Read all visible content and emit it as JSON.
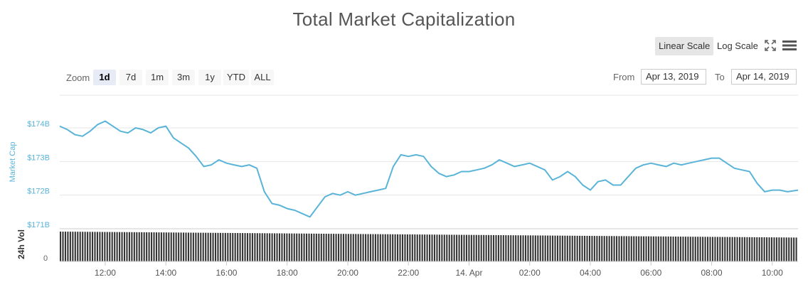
{
  "toolbar": {
    "scale_linear": "Linear Scale",
    "scale_log": "Log Scale",
    "fullscreen_icon": "fullscreen-icon",
    "menu_icon": "hamburger-menu-icon"
  },
  "range_selector": {
    "zoom_label": "Zoom",
    "buttons": [
      "1d",
      "7d",
      "1m",
      "3m",
      "1y",
      "YTD",
      "ALL"
    ],
    "active": "1d",
    "from_label": "From",
    "from_value": "Apr 13, 2019",
    "to_label": "To",
    "to_value": "Apr 14, 2019"
  },
  "colors": {
    "line": "#5ab4d8",
    "volume": "#333333",
    "grid": "#e6e6e6",
    "axis_text": "#666666",
    "ylabel": "#5ab4d8"
  },
  "chart_data": {
    "type": "line",
    "title": "Total Market Capitalization",
    "ylabel": "Market Cap",
    "y_ticks": [
      "$174B",
      "$173B",
      "$172B",
      "$171B"
    ],
    "ylim": [
      171,
      174.5
    ],
    "x_ticks": [
      "12:00",
      "14:00",
      "16:00",
      "18:00",
      "20:00",
      "22:00",
      "14. Apr",
      "02:00",
      "04:00",
      "06:00",
      "08:00",
      "10:00"
    ],
    "xlim": [
      10.5,
      34.85
    ],
    "grid": true,
    "series": [
      {
        "x": [
          10.5,
          10.75,
          11.0,
          11.25,
          11.5,
          11.75,
          12.0,
          12.25,
          12.5,
          12.75,
          13.0,
          13.25,
          13.5,
          13.75,
          14.0,
          14.25,
          14.5,
          14.75,
          15.0,
          15.25,
          15.5,
          15.75,
          16.0,
          16.25,
          16.5,
          16.75,
          17.0,
          17.25,
          17.5,
          17.75,
          18.0,
          18.25,
          18.5,
          18.75,
          19.0,
          19.25,
          19.5,
          19.75,
          20.0,
          20.25,
          20.5,
          20.75,
          21.0,
          21.25,
          21.5,
          21.75,
          22.0,
          22.25,
          22.5,
          22.75,
          23.0,
          23.25,
          23.5,
          23.75,
          24.0,
          24.25,
          24.5,
          24.75,
          25.0,
          25.25,
          25.5,
          25.75,
          26.0,
          26.25,
          26.5,
          26.75,
          27.0,
          27.25,
          27.5,
          27.75,
          28.0,
          28.25,
          28.5,
          28.75,
          29.0,
          29.25,
          29.5,
          29.75,
          30.0,
          30.25,
          30.5,
          30.75,
          31.0,
          31.25,
          31.5,
          31.75,
          32.0,
          32.25,
          32.5,
          32.75,
          33.0,
          33.25,
          33.5,
          33.75,
          34.0,
          34.25,
          34.5,
          34.85
        ],
        "y": [
          174.05,
          173.95,
          173.8,
          173.75,
          173.9,
          174.1,
          174.2,
          174.05,
          173.9,
          173.85,
          174.0,
          173.95,
          173.85,
          174.0,
          174.05,
          173.7,
          173.55,
          173.4,
          173.15,
          172.85,
          172.9,
          173.05,
          172.95,
          172.9,
          172.85,
          172.9,
          172.8,
          172.1,
          171.75,
          171.7,
          171.6,
          171.55,
          171.45,
          171.35,
          171.65,
          171.95,
          172.05,
          172.0,
          172.1,
          172.0,
          172.05,
          172.1,
          172.15,
          172.2,
          172.85,
          173.2,
          173.15,
          173.2,
          173.15,
          172.85,
          172.65,
          172.55,
          172.6,
          172.7,
          172.7,
          172.75,
          172.8,
          172.9,
          173.05,
          172.95,
          172.85,
          172.9,
          172.95,
          172.85,
          172.75,
          172.45,
          172.55,
          172.7,
          172.55,
          172.3,
          172.15,
          172.4,
          172.45,
          172.3,
          172.3,
          172.55,
          172.8,
          172.9,
          172.95,
          172.9,
          172.85,
          172.95,
          172.9,
          172.95,
          173.0,
          173.05,
          173.1,
          173.1,
          172.95,
          172.8,
          172.75,
          172.7,
          172.35,
          172.1,
          172.15,
          172.15,
          172.1,
          172.15
        ]
      }
    ],
    "volume": {
      "label": "24h Vol",
      "y_tick": "0"
    }
  }
}
